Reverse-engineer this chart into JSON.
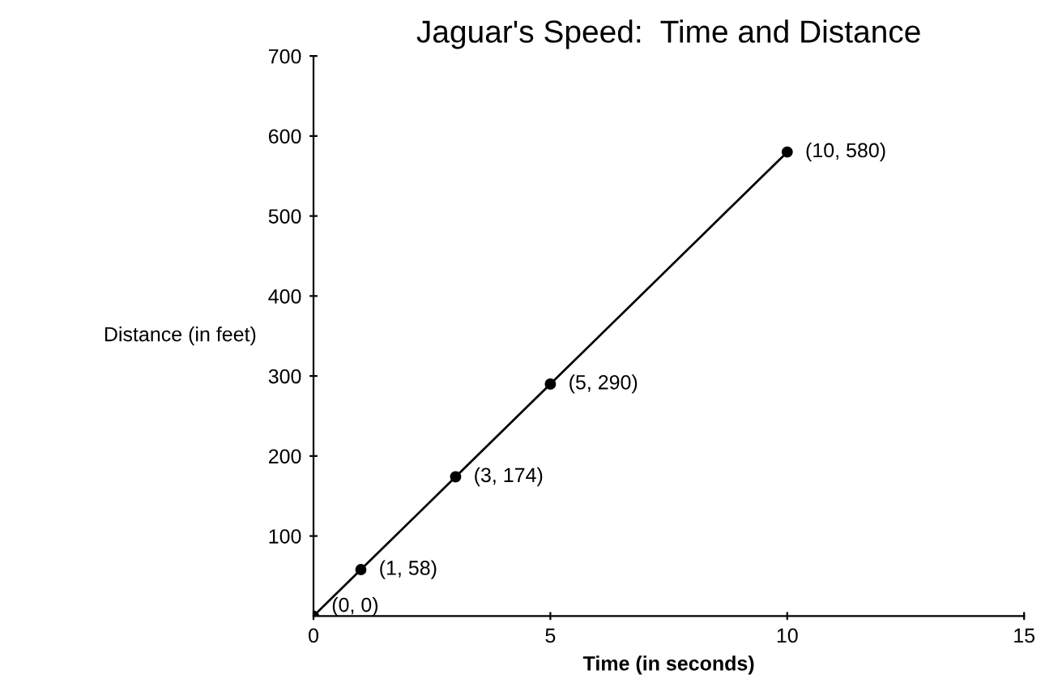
{
  "chart_data": {
    "type": "line",
    "title": "Jaguar's Speed:  Time and Distance",
    "xlabel": "Time (in seconds)",
    "ylabel": "Distance (in feet)",
    "x": [
      0,
      1,
      3,
      5,
      10
    ],
    "series": [
      {
        "color": "#000000",
        "values": [
          0,
          58,
          174,
          290,
          580
        ]
      }
    ],
    "marker": "circle",
    "line_style": "solid",
    "grid": false,
    "xlim": [
      0,
      15
    ],
    "xticks": [
      0,
      5,
      10,
      15
    ],
    "ylim": [
      0,
      700
    ],
    "yticks": [
      100,
      200,
      300,
      400,
      500,
      600,
      700
    ],
    "annotations": [
      {
        "text": "(0, 0)",
        "x": 0,
        "y": 0
      },
      {
        "text": "(1, 58)",
        "x": 1,
        "y": 58
      },
      {
        "text": "(3, 174)",
        "x": 3,
        "y": 174
      },
      {
        "text": "(5, 290)",
        "x": 5,
        "y": 290
      },
      {
        "text": "(10, 580)",
        "x": 10,
        "y": 580
      }
    ]
  }
}
